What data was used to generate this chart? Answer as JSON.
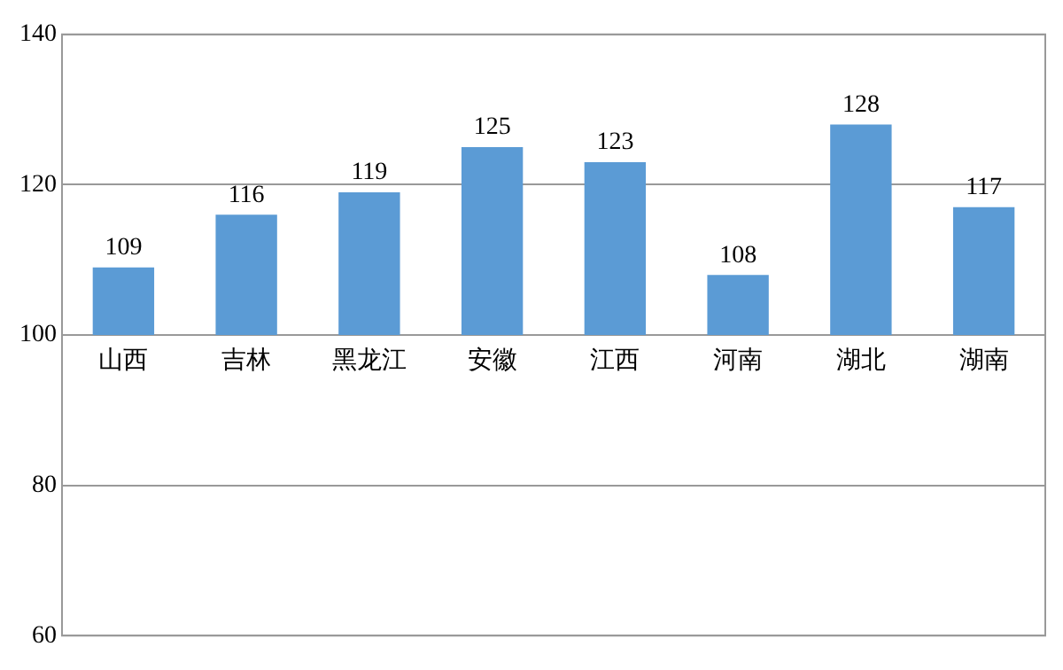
{
  "chart_data": {
    "type": "bar",
    "categories": [
      "山西",
      "吉林",
      "黑龙江",
      "安徽",
      "江西",
      "河南",
      "湖北",
      "湖南"
    ],
    "base": [
      100,
      100,
      100,
      100,
      100,
      100,
      100,
      100
    ],
    "values": [
      9,
      16,
      19,
      25,
      23,
      8,
      28,
      17
    ],
    "value_labels": [
      "109",
      "116",
      "119",
      "125",
      "123",
      "108",
      "128",
      "117"
    ],
    "color": "#5b9bd5",
    "ylim": [
      60,
      140
    ],
    "yticks": [
      60,
      80,
      100,
      120,
      140
    ],
    "grid": "y",
    "legend": false
  }
}
